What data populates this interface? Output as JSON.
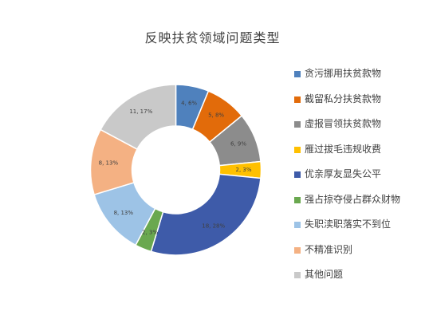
{
  "chart_data": {
    "type": "pie",
    "variant": "donut",
    "title": "反映扶贫领域问题类型",
    "legend_position": "right",
    "start_angle_deg": 0,
    "direction": "clockwise",
    "series": [
      {
        "values": [
          {
            "category": "贪污挪用扶贫款物",
            "value": 4,
            "percent": "6%",
            "label": "4, 6%",
            "color": "#4F81BD"
          },
          {
            "category": "截留私分扶贫款物",
            "value": 5,
            "percent": "8%",
            "label": "5, 8%",
            "color": "#E26B0A"
          },
          {
            "category": "虚报冒领扶贫款物",
            "value": 6,
            "percent": "9%",
            "label": "6, 9%",
            "color": "#8C8C8C"
          },
          {
            "category": "雁过拔毛违规收费",
            "value": 2,
            "percent": "3%",
            "label": "2, 3%",
            "color": "#FFC000"
          },
          {
            "category": "优亲厚友显失公平",
            "value": 18,
            "percent": "28%",
            "label": "18, 28%",
            "color": "#3E5BA9"
          },
          {
            "category": "强占掠夺侵占群众财物",
            "value": 2,
            "percent": "3%",
            "label": "2, 3%",
            "color": "#6AA84F"
          },
          {
            "category": "失职渎职落实不到位",
            "value": 8,
            "percent": "13%",
            "label": "8, 13%",
            "color": "#9DC3E6"
          },
          {
            "category": "不精准识别",
            "value": 8,
            "percent": "13%",
            "label": "8, 13%",
            "color": "#F4B183"
          },
          {
            "category": "其他问题",
            "value": 11,
            "percent": "17%",
            "label": "11, 17%",
            "color": "#C9C9C9"
          }
        ]
      }
    ]
  }
}
